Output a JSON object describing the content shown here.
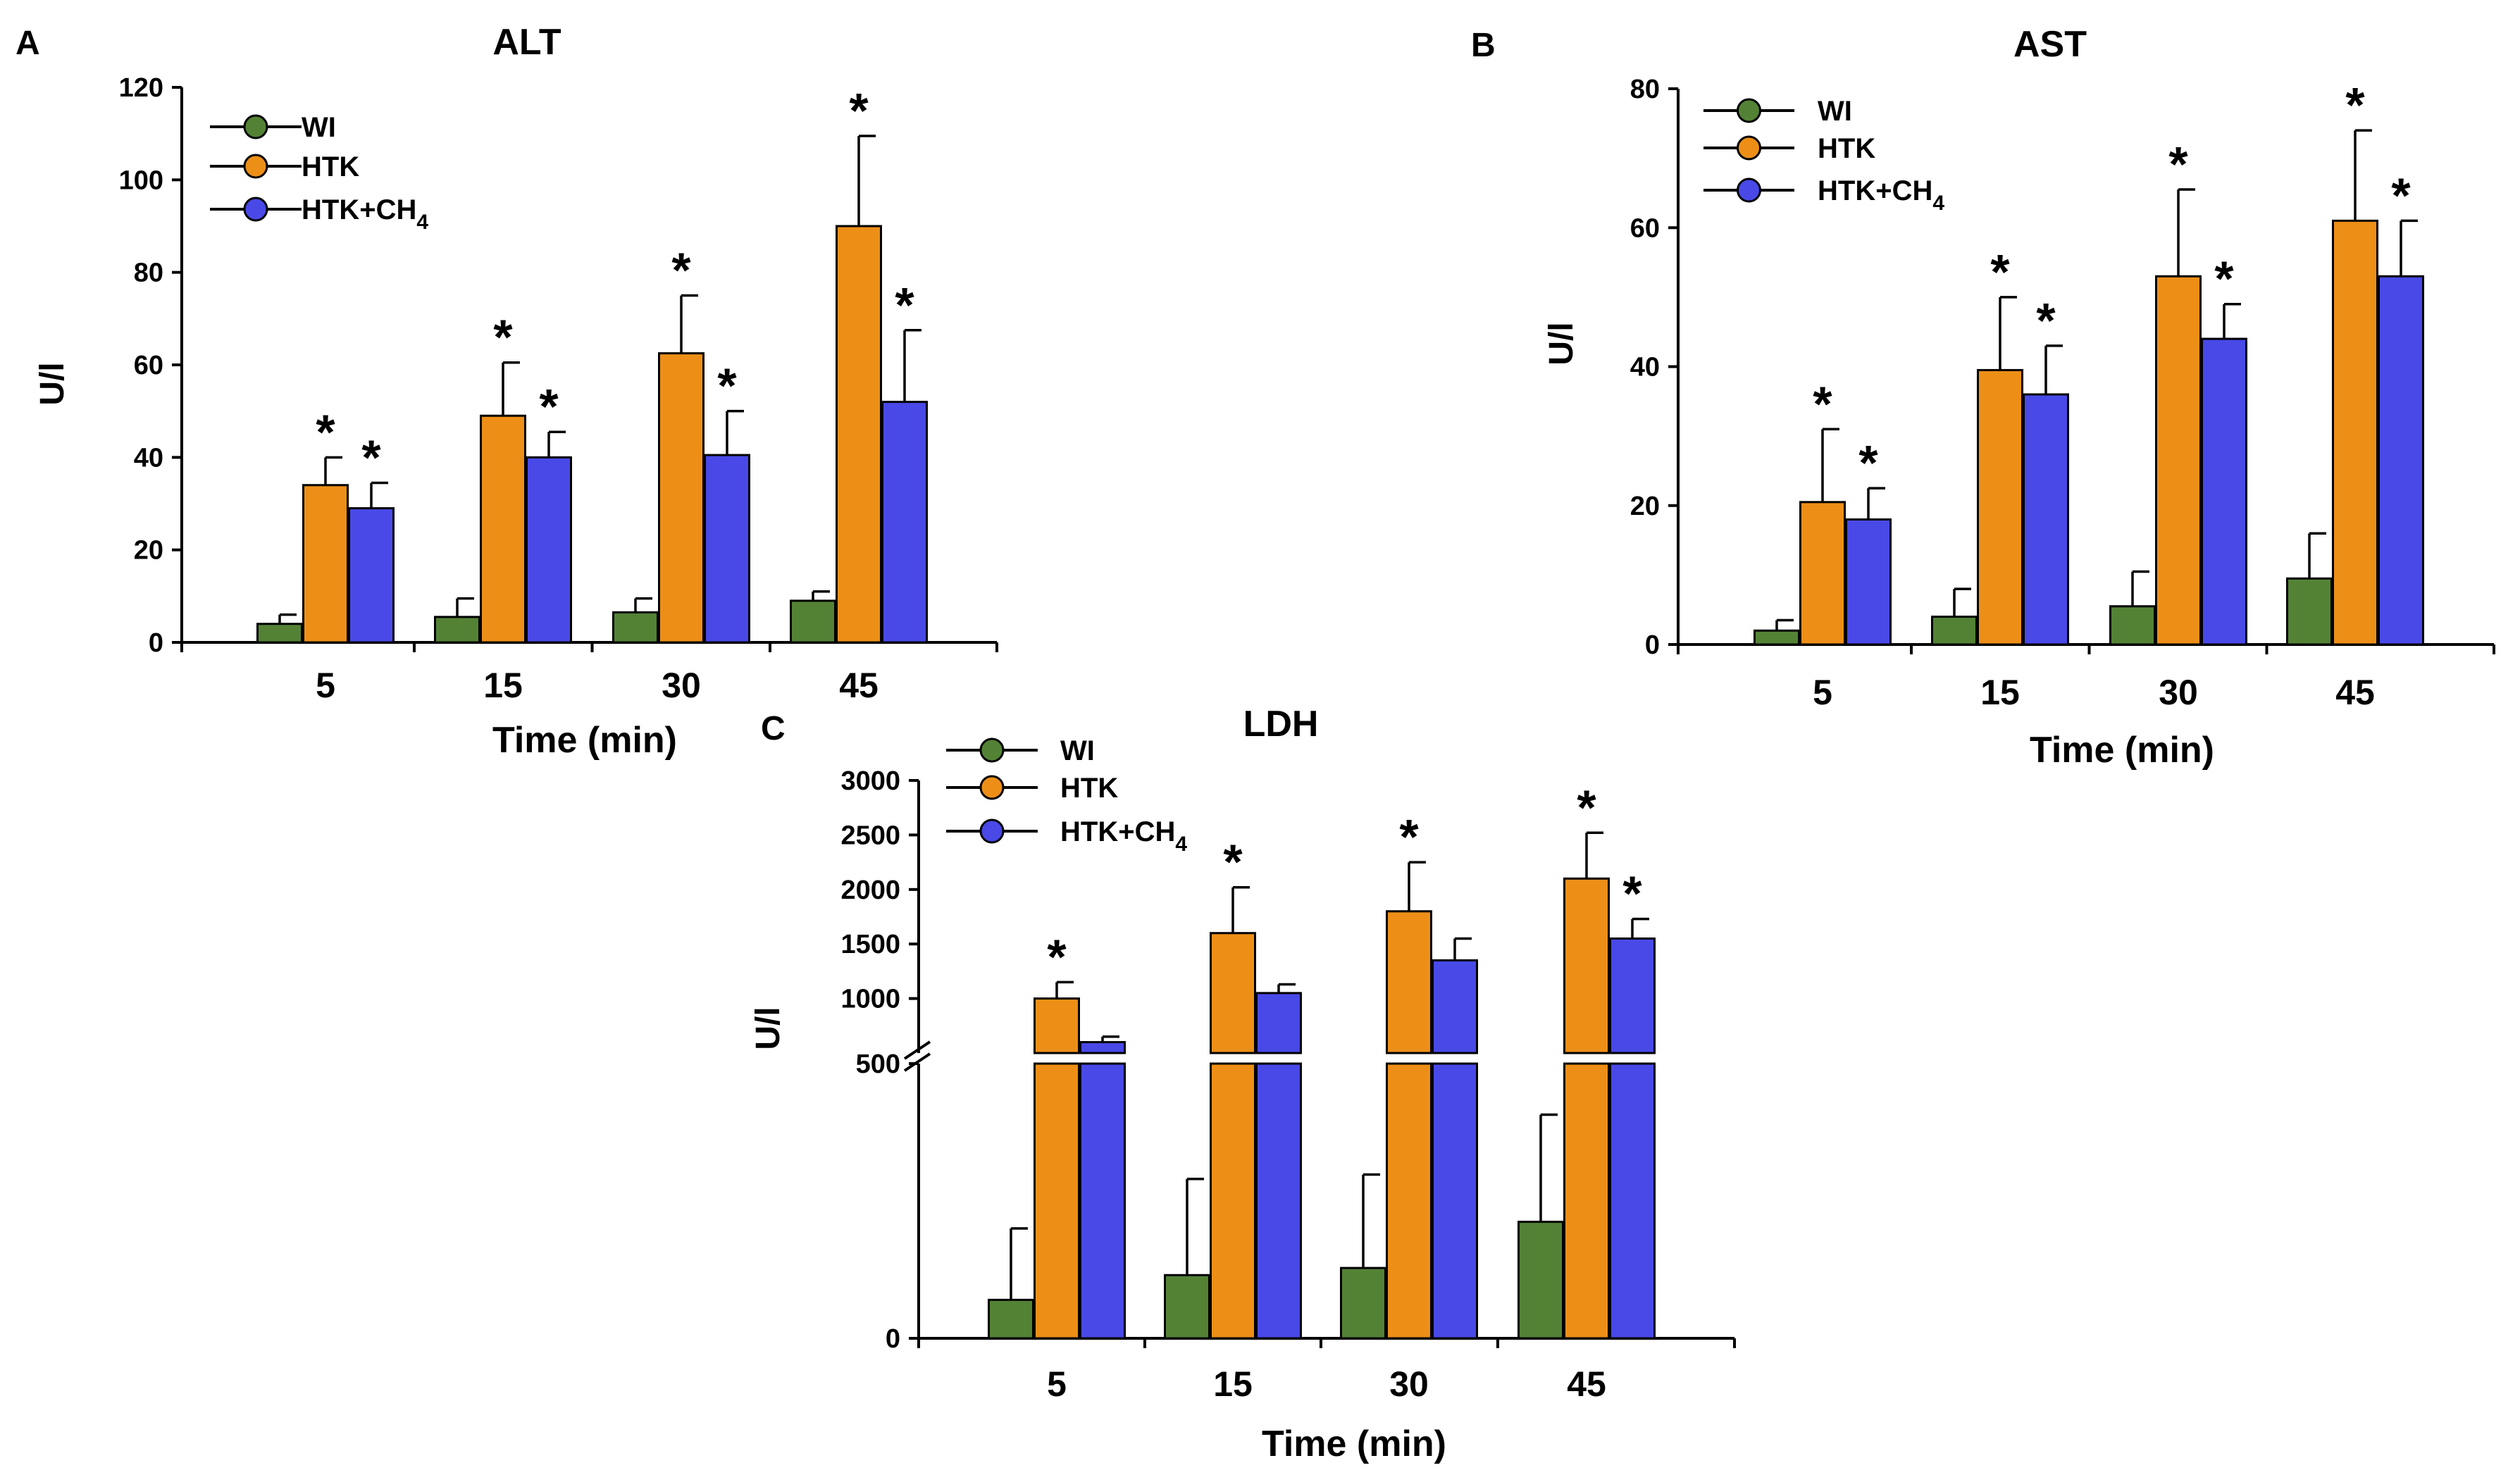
{
  "chart_data": [
    {
      "type": "bar",
      "panel_label": "A",
      "title": "ALT",
      "xlabel": "Time (min)",
      "ylabel": "U/l",
      "categories": [
        "5",
        "15",
        "30",
        "45"
      ],
      "ylim": [
        0,
        120
      ],
      "yticks": [
        "0",
        "20",
        "40",
        "60",
        "80",
        "100",
        "120"
      ],
      "series": [
        {
          "name": "WI",
          "color": "#548235",
          "values": [
            4,
            5.5,
            6.5,
            9
          ],
          "errors": [
            2,
            4,
            3,
            2
          ],
          "sig": [
            false,
            false,
            false,
            false
          ]
        },
        {
          "name": "HTK",
          "color": "#ed8f17",
          "values": [
            34,
            49,
            62.5,
            90
          ],
          "errors": [
            6,
            11.5,
            12.5,
            19.5
          ],
          "sig": [
            true,
            true,
            true,
            true
          ]
        },
        {
          "name": "HTK+CH4",
          "color": "#4949e7",
          "values": [
            29,
            40,
            40.5,
            52
          ],
          "errors": [
            5.5,
            5.5,
            9.5,
            15.5
          ],
          "sig": [
            true,
            true,
            true,
            true
          ]
        }
      ],
      "legend": {
        "position": "top-left",
        "entries": [
          "WI",
          "HTK",
          "HTK+CH"
        ],
        "subscript": "4"
      },
      "significance_marker": "*"
    },
    {
      "type": "bar",
      "panel_label": "B",
      "title": "AST",
      "xlabel": "Time (min)",
      "ylabel": "U/l",
      "categories": [
        "5",
        "15",
        "30",
        "45"
      ],
      "ylim": [
        0,
        80
      ],
      "yticks": [
        "0",
        "20",
        "40",
        "60",
        "80"
      ],
      "series": [
        {
          "name": "WI",
          "color": "#548235",
          "values": [
            2,
            4,
            5.5,
            9.5
          ],
          "errors": [
            1.5,
            4,
            5,
            6.5
          ],
          "sig": [
            false,
            false,
            false,
            false
          ]
        },
        {
          "name": "HTK",
          "color": "#ed8f17",
          "values": [
            20.5,
            39.5,
            53,
            61
          ],
          "errors": [
            10.5,
            10.5,
            12.5,
            13
          ],
          "sig": [
            true,
            true,
            true,
            true
          ]
        },
        {
          "name": "HTK+CH4",
          "color": "#4949e7",
          "values": [
            18,
            36,
            44,
            53
          ],
          "errors": [
            4.5,
            7,
            5,
            8
          ],
          "sig": [
            true,
            true,
            true,
            true
          ]
        }
      ],
      "legend": {
        "position": "top-left",
        "entries": [
          "WI",
          "HTK",
          "HTK+CH"
        ],
        "subscript": "4"
      },
      "significance_marker": "*"
    },
    {
      "type": "bar",
      "panel_label": "C",
      "title": "LDH",
      "xlabel": "Time (min)",
      "ylabel": "U/l",
      "categories": [
        "5",
        "15",
        "30",
        "45"
      ],
      "broken_axis": true,
      "lower_range": [
        0,
        500
      ],
      "upper_range": [
        500,
        3000
      ],
      "yticks_lower": [
        "0"
      ],
      "yticks_upper": [
        "500",
        "1000",
        "1500",
        "2000",
        "2500",
        "3000"
      ],
      "series": [
        {
          "name": "WI",
          "color": "#548235",
          "values": [
            70,
            115,
            128,
            212
          ],
          "errors": [
            130,
            175,
            170,
            195
          ],
          "sig": [
            false,
            false,
            false,
            false
          ]
        },
        {
          "name": "HTK",
          "color": "#ed8f17",
          "values": [
            1000,
            1600,
            1800,
            2100
          ],
          "errors": [
            150,
            420,
            450,
            420
          ],
          "sig": [
            true,
            true,
            true,
            true
          ]
        },
        {
          "name": "HTK+CH4",
          "color": "#4949e7",
          "values": [
            600,
            1050,
            1350,
            1550
          ],
          "errors": [
            50,
            80,
            200,
            180
          ],
          "sig": [
            false,
            false,
            false,
            true
          ]
        }
      ],
      "legend": {
        "position": "top-left",
        "entries": [
          "WI",
          "HTK",
          "HTK+CH"
        ],
        "subscript": "4"
      },
      "significance_marker": "*"
    }
  ]
}
